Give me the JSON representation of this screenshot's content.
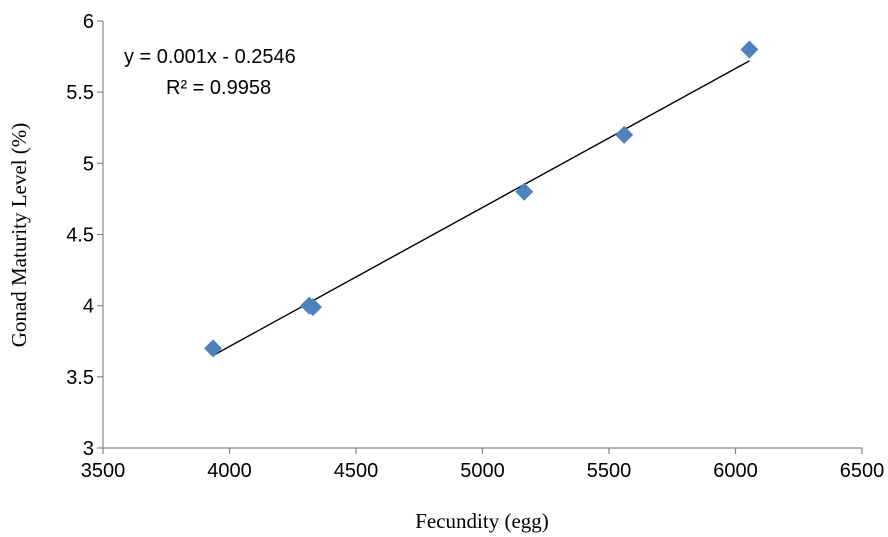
{
  "chart_data": {
    "type": "scatter",
    "title": "",
    "xlabel": "Fecundity (egg)",
    "ylabel": "Gonad Maturity Level (%)",
    "xlim": [
      3500,
      6500
    ],
    "ylim": [
      3,
      6
    ],
    "x_ticks": [
      3500,
      4000,
      4500,
      5000,
      5500,
      6000,
      6500
    ],
    "y_ticks": [
      3,
      3.5,
      4,
      4.5,
      5,
      5.5,
      6
    ],
    "x_tick_labels": [
      "3500",
      "4000",
      "4500",
      "5000",
      "5500",
      "6000",
      "6500"
    ],
    "y_tick_labels": [
      "3",
      "3.5",
      "4",
      "4.5",
      "5",
      "5.5",
      "6"
    ],
    "grid": false,
    "legend": "none",
    "series": [
      {
        "marker": "diamond",
        "color": "#4F81BD",
        "points": [
          {
            "x": 3935,
            "y": 3.7
          },
          {
            "x": 4315,
            "y": 4.0
          },
          {
            "x": 4330,
            "y": 3.99
          },
          {
            "x": 5165,
            "y": 4.8
          },
          {
            "x": 5560,
            "y": 5.2
          },
          {
            "x": 6055,
            "y": 5.8
          }
        ]
      }
    ],
    "trendline": {
      "type": "linear",
      "color": "#000000",
      "x_range": [
        3935,
        6055
      ],
      "y_range": [
        3.65,
        5.72
      ]
    },
    "annotations": {
      "equation": "y = 0.001x - 0.2546",
      "r_squared": "R² = 0.9958"
    }
  }
}
